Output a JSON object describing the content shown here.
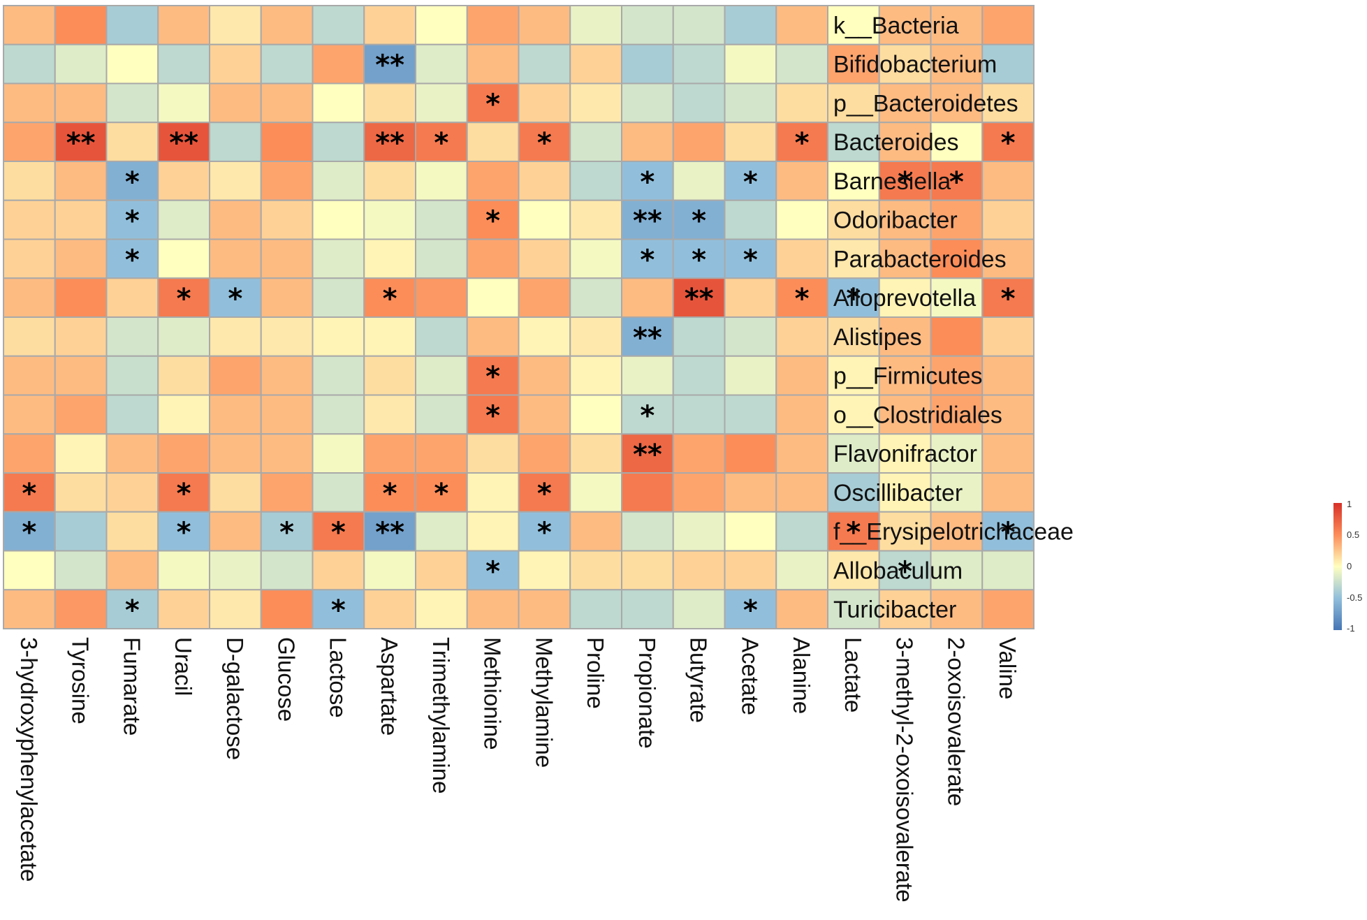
{
  "chart_data": {
    "type": "heatmap",
    "title": "",
    "rows": [
      "k__Bacteria",
      "Bifidobacterium",
      "p__Bacteroidetes",
      "Bacteroides",
      "Barnesiella",
      "Odoribacter",
      "Parabacteroides",
      "Alloprevotella",
      "Alistipes",
      "p__Firmicutes",
      "o__Clostridiales",
      "Flavonifractor",
      "Oscillibacter",
      "f__Erysipelotrichaceae",
      "Allobaculum",
      "Turicibacter"
    ],
    "columns": [
      "3-hydroxyphenylacetate",
      "Tyrosine",
      "Fumarate",
      "Uracil",
      "D-galactose",
      "Glucose",
      "Lactose",
      "Aspartate",
      "Trimethylamine",
      "Methionine",
      "Methylamine",
      "Proline",
      "Propionate",
      "Butyrate",
      "Acetate",
      "Alanine",
      "Lactate",
      "3-methyl-2-oxoisovalerate",
      "2-oxoisovalerate",
      "Valine"
    ],
    "values": [
      [
        0.3,
        0.5,
        -0.4,
        0.3,
        0.1,
        0.3,
        -0.3,
        0.2,
        0.0,
        0.4,
        0.3,
        -0.1,
        -0.2,
        -0.2,
        -0.4,
        0.3,
        0.0,
        0.3,
        0.3,
        0.4
      ],
      [
        -0.3,
        -0.15,
        0.0,
        -0.3,
        0.2,
        -0.3,
        0.4,
        -0.7,
        -0.15,
        0.3,
        -0.3,
        0.2,
        -0.4,
        -0.3,
        -0.05,
        -0.2,
        0.4,
        0.15,
        0.3,
        -0.4
      ],
      [
        0.3,
        0.3,
        -0.2,
        -0.05,
        0.3,
        0.3,
        0.0,
        0.15,
        -0.1,
        0.6,
        0.2,
        0.1,
        -0.2,
        -0.3,
        -0.2,
        0.15,
        0.15,
        0.3,
        0.3,
        0.15
      ],
      [
        0.4,
        0.8,
        0.15,
        0.8,
        -0.3,
        0.5,
        -0.3,
        0.7,
        0.6,
        0.15,
        0.6,
        -0.2,
        0.3,
        0.4,
        0.15,
        0.6,
        -0.3,
        0.3,
        0.0,
        0.6
      ],
      [
        0.15,
        0.3,
        -0.6,
        0.2,
        0.1,
        0.4,
        -0.15,
        0.15,
        -0.05,
        0.4,
        0.2,
        -0.3,
        -0.5,
        -0.1,
        -0.5,
        0.3,
        0.0,
        0.6,
        0.6,
        0.3
      ],
      [
        0.2,
        0.2,
        -0.5,
        -0.15,
        0.3,
        0.2,
        0.0,
        -0.05,
        -0.2,
        0.5,
        0.0,
        0.1,
        -0.6,
        -0.6,
        -0.3,
        0.0,
        0.15,
        0.3,
        0.4,
        0.2
      ],
      [
        0.2,
        0.3,
        -0.5,
        0.0,
        0.3,
        0.3,
        -0.15,
        0.05,
        -0.2,
        0.4,
        0.2,
        -0.05,
        -0.5,
        -0.5,
        -0.5,
        0.2,
        0.1,
        0.3,
        0.5,
        0.3
      ],
      [
        0.3,
        0.5,
        0.2,
        0.6,
        -0.5,
        0.3,
        -0.2,
        0.5,
        0.45,
        0.0,
        0.4,
        -0.2,
        0.3,
        0.8,
        0.2,
        0.5,
        -0.5,
        0.05,
        -0.05,
        0.6
      ],
      [
        0.15,
        0.2,
        -0.2,
        -0.15,
        0.1,
        0.1,
        0.05,
        0.05,
        -0.3,
        0.3,
        0.05,
        0.1,
        -0.6,
        -0.3,
        -0.2,
        0.2,
        0.15,
        0.3,
        0.5,
        0.2
      ],
      [
        0.3,
        0.3,
        -0.25,
        0.15,
        0.4,
        0.3,
        -0.2,
        0.15,
        -0.15,
        0.6,
        0.3,
        0.05,
        -0.1,
        -0.3,
        -0.1,
        0.3,
        0.05,
        0.3,
        0.4,
        0.3
      ],
      [
        0.3,
        0.4,
        -0.3,
        0.05,
        0.3,
        0.3,
        -0.2,
        0.1,
        -0.2,
        0.6,
        0.3,
        0.0,
        -0.3,
        -0.3,
        -0.3,
        0.3,
        0.05,
        0.3,
        0.4,
        0.3
      ],
      [
        0.4,
        0.05,
        0.3,
        0.4,
        0.3,
        0.3,
        -0.05,
        0.4,
        0.4,
        0.15,
        0.4,
        0.15,
        0.7,
        0.4,
        0.5,
        0.3,
        -0.15,
        0.05,
        -0.1,
        0.3
      ],
      [
        0.6,
        0.15,
        0.2,
        0.6,
        0.15,
        0.4,
        -0.2,
        0.5,
        0.5,
        0.05,
        0.6,
        -0.05,
        0.6,
        0.4,
        0.3,
        0.3,
        -0.4,
        0.05,
        -0.1,
        0.3
      ],
      [
        -0.6,
        -0.4,
        0.15,
        -0.5,
        0.3,
        -0.4,
        0.6,
        -0.7,
        -0.15,
        0.05,
        -0.5,
        0.3,
        -0.2,
        -0.1,
        0.0,
        -0.3,
        0.6,
        0.15,
        0.3,
        -0.5
      ],
      [
        0.0,
        -0.2,
        0.3,
        -0.05,
        -0.1,
        -0.2,
        0.2,
        -0.05,
        0.2,
        -0.5,
        0.05,
        0.15,
        0.15,
        0.2,
        0.2,
        -0.1,
        0.1,
        -0.3,
        -0.15,
        -0.15
      ],
      [
        0.3,
        0.45,
        -0.4,
        0.2,
        0.1,
        0.5,
        -0.5,
        0.2,
        0.05,
        0.3,
        0.3,
        -0.3,
        -0.3,
        -0.15,
        -0.5,
        0.3,
        -0.2,
        0.2,
        0.3,
        0.4
      ]
    ],
    "significance": [
      [
        "",
        "",
        "",
        "",
        "",
        "",
        "",
        "",
        "",
        "",
        "",
        "",
        "",
        "",
        "",
        "",
        "",
        "",
        "",
        ""
      ],
      [
        "",
        "",
        "",
        "",
        "",
        "",
        "",
        "**",
        "",
        "",
        "",
        "",
        "",
        "",
        "",
        "",
        "",
        "",
        "",
        ""
      ],
      [
        "",
        "",
        "",
        "",
        "",
        "",
        "",
        "",
        "",
        "*",
        "",
        "",
        "",
        "",
        "",
        "",
        "",
        "",
        "",
        ""
      ],
      [
        "",
        "**",
        "",
        "**",
        "",
        "",
        "",
        "**",
        "*",
        "",
        "*",
        "",
        "",
        "",
        "",
        "*",
        "",
        "",
        "",
        "*"
      ],
      [
        "",
        "",
        "*",
        "",
        "",
        "",
        "",
        "",
        "",
        "",
        "",
        "",
        "*",
        "",
        "*",
        "",
        "",
        "*",
        "*",
        ""
      ],
      [
        "",
        "",
        "*",
        "",
        "",
        "",
        "",
        "",
        "",
        "*",
        "",
        "",
        "**",
        "*",
        "",
        "",
        "",
        "",
        "",
        ""
      ],
      [
        "",
        "",
        "*",
        "",
        "",
        "",
        "",
        "",
        "",
        "",
        "",
        "",
        "*",
        "*",
        "*",
        "",
        "",
        "",
        "",
        ""
      ],
      [
        "",
        "",
        "",
        "*",
        "*",
        "",
        "",
        "*",
        "",
        "",
        "",
        "",
        "",
        "**",
        "",
        "*",
        "*",
        "",
        "",
        "*"
      ],
      [
        "",
        "",
        "",
        "",
        "",
        "",
        "",
        "",
        "",
        "",
        "",
        "",
        "**",
        "",
        "",
        "",
        "",
        "",
        "",
        ""
      ],
      [
        "",
        "",
        "",
        "",
        "",
        "",
        "",
        "",
        "",
        "*",
        "",
        "",
        "",
        "",
        "",
        "",
        "",
        "",
        "",
        ""
      ],
      [
        "",
        "",
        "",
        "",
        "",
        "",
        "",
        "",
        "",
        "*",
        "",
        "",
        "*",
        "",
        "",
        "",
        "",
        "",
        "",
        ""
      ],
      [
        "",
        "",
        "",
        "",
        "",
        "",
        "",
        "",
        "",
        "",
        "",
        "",
        "**",
        "",
        "",
        "",
        "",
        "",
        "",
        ""
      ],
      [
        "*",
        "",
        "",
        "*",
        "",
        "",
        "",
        "*",
        "*",
        "",
        "*",
        "",
        "",
        "",
        "",
        "",
        "",
        "",
        "",
        ""
      ],
      [
        "*",
        "",
        "",
        "*",
        "",
        "*",
        "*",
        "**",
        "",
        "",
        "*",
        "",
        "",
        "",
        "",
        "",
        "*",
        "",
        "",
        "*"
      ],
      [
        "",
        "",
        "",
        "",
        "",
        "",
        "",
        "",
        "",
        "*",
        "",
        "",
        "",
        "",
        "",
        "",
        "",
        "*",
        "",
        ""
      ],
      [
        "",
        "",
        "*",
        "",
        "",
        "",
        "*",
        "",
        "",
        "",
        "",
        "",
        "",
        "",
        "*",
        "",
        "",
        "",
        "",
        ""
      ]
    ],
    "color_scale": {
      "min": -1,
      "max": 1,
      "ticks": [
        "1",
        "0.5",
        "0",
        "-0.5",
        "-1"
      ],
      "stops": [
        "#4575b4",
        "#91bfdb",
        "#ffffbf",
        "#fc8d59",
        "#d73027"
      ]
    },
    "grid_line_color": "#a9a9a9",
    "legend_position": "right"
  }
}
